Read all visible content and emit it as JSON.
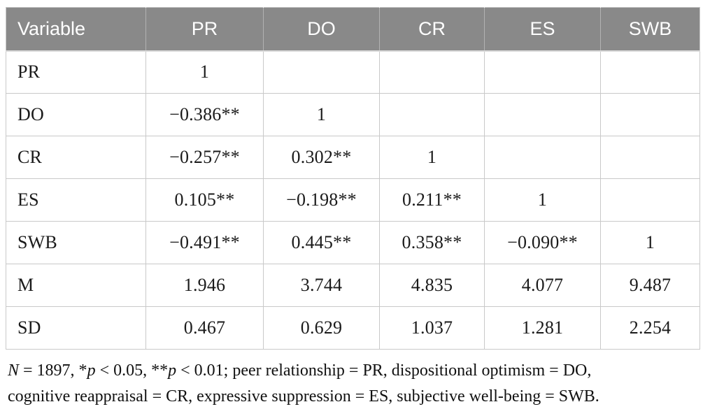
{
  "table": {
    "columns": [
      "Variable",
      "PR",
      "DO",
      "CR",
      "ES",
      "SWB"
    ],
    "rows": [
      {
        "label": "PR",
        "values": [
          "1",
          "",
          "",
          "",
          ""
        ]
      },
      {
        "label": "DO",
        "values": [
          "−0.386**",
          "1",
          "",
          "",
          ""
        ]
      },
      {
        "label": "CR",
        "values": [
          "−0.257**",
          "0.302**",
          "1",
          "",
          ""
        ]
      },
      {
        "label": "ES",
        "values": [
          "0.105**",
          "−0.198**",
          "0.211**",
          "1",
          ""
        ]
      },
      {
        "label": "SWB",
        "values": [
          "−0.491**",
          "0.445**",
          "0.358**",
          "−0.090**",
          "1"
        ]
      },
      {
        "label": "M",
        "values": [
          "1.946",
          "3.744",
          "4.835",
          "4.077",
          "9.487"
        ]
      },
      {
        "label": "SD",
        "values": [
          "0.467",
          "0.629",
          "1.037",
          "1.281",
          "2.254"
        ]
      }
    ]
  },
  "footnote": {
    "line1": [
      {
        "text": "N",
        "italic": true
      },
      {
        "text": " = 1897, *",
        "italic": false
      },
      {
        "text": "p",
        "italic": true
      },
      {
        "text": " < 0.05, **",
        "italic": false
      },
      {
        "text": "p",
        "italic": true
      },
      {
        "text": " < 0.01; peer relationship = PR, dispositional optimism = DO,",
        "italic": false
      }
    ],
    "line2": [
      {
        "text": "cognitive reappraisal = CR, expressive suppression = ES, subjective well-being = SWB.",
        "italic": false
      }
    ]
  },
  "colors": {
    "header_bg": "#898989",
    "header_text": "#ffffff",
    "body_border": "#c9c9c9",
    "text": "#1a1a1a"
  }
}
